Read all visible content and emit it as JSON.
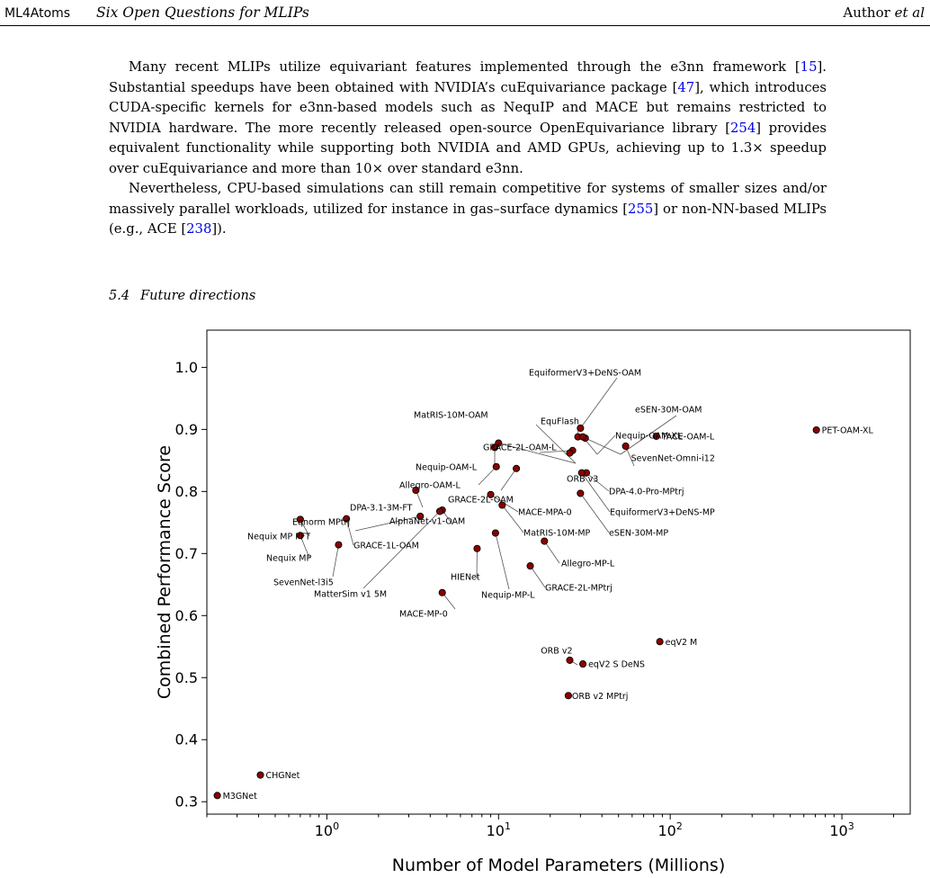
{
  "header": {
    "left": "ML4Atoms",
    "title": "Six Open Questions for MLIPs",
    "author": "Author",
    "etal": "et al"
  },
  "paragraphs": [
    [
      {
        "t": "Many recent MLIPs utilize equivariant features implemented through the e3nn framework ["
      },
      {
        "t": "15",
        "link": true
      },
      {
        "t": "]. Substantial speedups have been obtained with NVIDIA’s cuEquivariance package ["
      },
      {
        "t": "47",
        "link": true
      },
      {
        "t": "], which introduces CUDA-specific kernels for e3nn-based models such as NequIP and MACE but remains restricted to NVIDIA hardware. The more recently released open-source OpenEquivariance library ["
      },
      {
        "t": "254",
        "link": true
      },
      {
        "t": "] provides equivalent functionality while supporting both NVIDIA and AMD GPUs, achieving up to 1.3× speedup over cuEquivariance and more than 10× over standard e3nn."
      }
    ],
    [
      {
        "t": "Nevertheless, CPU-based simulations can still remain competitive for systems of smaller sizes and/or massively parallel workloads, utilized for instance in gas–surface dynamics ["
      },
      {
        "t": "255",
        "link": true
      },
      {
        "t": "] or non-NN-based MLIPs (e.g., ACE ["
      },
      {
        "t": "238",
        "link": true
      },
      {
        "t": "])."
      }
    ]
  ],
  "section": {
    "number": "5.4",
    "title": "Future directions"
  },
  "colors": {
    "marker": "#8b0000",
    "link": "#0000e6"
  },
  "chart_data": {
    "type": "scatter",
    "title": "",
    "xlabel": "Number of Model Parameters (Millions)",
    "ylabel": "Combined Performance Score",
    "xscale": "log",
    "xlim": [
      0.2,
      2500
    ],
    "ylim": [
      0.28,
      1.06
    ],
    "xticks": [
      1,
      10,
      100,
      1000
    ],
    "xtick_labels": [
      "1",
      "10",
      "100",
      "1000"
    ],
    "yticks": [
      0.3,
      0.4,
      0.5,
      0.6,
      0.7,
      0.8,
      0.9,
      1.0
    ],
    "ytick_labels": [
      "0.3",
      "0.4",
      "0.5",
      "0.6",
      "0.7",
      "0.8",
      "0.9",
      "1.0"
    ],
    "grid": false,
    "points": [
      {
        "label": "PET-OAM-XL",
        "x": 710,
        "y": 0.899
      },
      {
        "label": "TACE-OAM-L",
        "x": 83,
        "y": 0.889
      },
      {
        "label": "SevenNet-Omni-i12",
        "x": 55,
        "y": 0.873
      },
      {
        "label": "eqV2 M",
        "x": 87,
        "y": 0.558
      },
      {
        "label": "eqV2 S DeNS",
        "x": 31,
        "y": 0.522
      },
      {
        "label": "ORB v2",
        "x": 26,
        "y": 0.528
      },
      {
        "label": "ORB v2 MPtrj",
        "x": 25.5,
        "y": 0.471
      },
      {
        "label": "EquiformerV3+DeNS-OAM",
        "x": 30,
        "y": 0.902
      },
      {
        "label": "eSEN-30M-OAM",
        "x": 32,
        "y": 0.886
      },
      {
        "label": "EquFlash",
        "x": 29,
        "y": 0.888
      },
      {
        "label": "Nequip-OAM-XL",
        "x": 31,
        "y": 0.888
      },
      {
        "label": "GRACE-2L-OAM-L",
        "x": 27,
        "y": 0.866
      },
      {
        "label": "ORB v3",
        "x": 26,
        "y": 0.862
      },
      {
        "label": "DPA-4.0-Pro-MPtrj",
        "x": 32.5,
        "y": 0.83
      },
      {
        "label": "EquiformerV3+DeNS-MP",
        "x": 30.5,
        "y": 0.83
      },
      {
        "label": "eSEN-30M-MP",
        "x": 30,
        "y": 0.797
      },
      {
        "label": "MatRIS-10M-OAM",
        "x": 10,
        "y": 0.878
      },
      {
        "label": "Nequip-OAM-L",
        "x": 9.5,
        "y": 0.871
      },
      {
        "label": "Allegro-OAM-L",
        "x": 9.7,
        "y": 0.84
      },
      {
        "label": "GRACE-2L-OAM",
        "x": 12.7,
        "y": 0.837
      },
      {
        "label": "MACE-MPA-0",
        "x": 9,
        "y": 0.795
      },
      {
        "label": "MatRIS-10M-MP",
        "x": 10.5,
        "y": 0.778
      },
      {
        "label": "DPA-3.1-3M-FT",
        "x": 3.3,
        "y": 0.802
      },
      {
        "label": "AlphaNet-v1-OAM",
        "x": 4.7,
        "y": 0.77
      },
      {
        "label": "MatterSim v1 5M",
        "x": 4.55,
        "y": 0.768
      },
      {
        "label": "Eqnorm MPtrj",
        "x": 3.5,
        "y": 0.76
      },
      {
        "label": "GRACE-1L-OAM",
        "x": 1.3,
        "y": 0.756
      },
      {
        "label": "Nequix MP PFT",
        "x": 0.7,
        "y": 0.755
      },
      {
        "label": "Nequix MP",
        "x": 0.7,
        "y": 0.729
      },
      {
        "label": "SevenNet-l3i5",
        "x": 1.17,
        "y": 0.714
      },
      {
        "label": "HIENet",
        "x": 7.5,
        "y": 0.708
      },
      {
        "label": "Nequip-MP-L",
        "x": 9.6,
        "y": 0.733
      },
      {
        "label": "Allegro-MP-L",
        "x": 18.5,
        "y": 0.72
      },
      {
        "label": "GRACE-2L-MPtrj",
        "x": 15.3,
        "y": 0.68
      },
      {
        "label": "MACE-MP-0",
        "x": 4.7,
        "y": 0.637
      },
      {
        "label": "CHGNet",
        "x": 0.41,
        "y": 0.343
      },
      {
        "label": "M3GNet",
        "x": 0.23,
        "y": 0.31
      }
    ]
  }
}
